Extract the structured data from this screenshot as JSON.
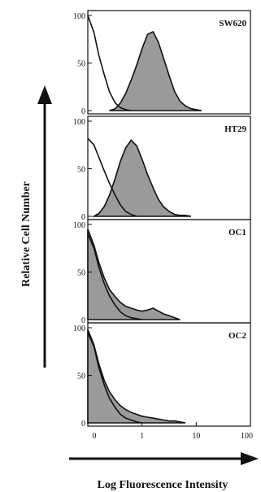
{
  "chart_data": {
    "type": "area",
    "xlabel": "Log Fluorescence Intensity",
    "ylabel": "Relative Cell Number",
    "x_scale": "log",
    "xlim": [
      0.1,
      100
    ],
    "ylim": [
      0,
      100
    ],
    "x_ticks": [
      {
        "value": 0.1,
        "label": "0"
      },
      {
        "value": 1,
        "label": "1"
      },
      {
        "value": 10,
        "label": "10"
      },
      {
        "value": 100,
        "label": "100"
      }
    ],
    "y_ticks": [
      {
        "value": 0,
        "label": "0"
      },
      {
        "value": 50,
        "label": "50"
      },
      {
        "value": 100,
        "label": "100"
      }
    ],
    "panels": [
      {
        "label": "SW620",
        "control": {
          "x": [
            0.1,
            0.13,
            0.16,
            0.2,
            0.25,
            0.32,
            0.4,
            0.5,
            0.63
          ],
          "y": [
            100,
            82,
            58,
            38,
            20,
            8,
            3,
            1,
            0
          ]
        },
        "stained": {
          "x": [
            0.25,
            0.32,
            0.4,
            0.5,
            0.63,
            0.8,
            1.0,
            1.26,
            1.6,
            2.0,
            2.5,
            3.2,
            4.0,
            5.0,
            6.3,
            8.0,
            10,
            12.6
          ],
          "y": [
            0,
            2,
            8,
            18,
            32,
            48,
            65,
            80,
            83,
            72,
            55,
            36,
            20,
            10,
            5,
            2,
            1,
            0
          ]
        }
      },
      {
        "label": "HT29",
        "control": {
          "x": [
            0.1,
            0.13,
            0.16,
            0.2,
            0.25,
            0.32,
            0.4,
            0.5,
            0.63,
            0.8
          ],
          "y": [
            82,
            75,
            62,
            48,
            35,
            22,
            12,
            5,
            2,
            0
          ]
        },
        "stained": {
          "x": [
            0.13,
            0.16,
            0.2,
            0.25,
            0.32,
            0.4,
            0.5,
            0.63,
            0.8,
            1.0,
            1.26,
            1.6,
            2.0,
            2.5,
            3.2,
            4.0,
            5.0,
            6.3,
            8.0
          ],
          "y": [
            0,
            3,
            10,
            22,
            40,
            58,
            72,
            80,
            74,
            60,
            44,
            30,
            18,
            10,
            5,
            2,
            1,
            1,
            0
          ]
        }
      },
      {
        "label": "OC1",
        "control": {
          "x": [
            0.1,
            0.13,
            0.16,
            0.2,
            0.25,
            0.32,
            0.4,
            0.5,
            0.63,
            0.8,
            1.0
          ],
          "y": [
            90,
            75,
            55,
            38,
            25,
            15,
            8,
            4,
            2,
            1,
            0
          ]
        },
        "stained": {
          "x": [
            0.1,
            0.13,
            0.16,
            0.2,
            0.25,
            0.32,
            0.4,
            0.5,
            0.63,
            0.8,
            1.0,
            1.26,
            1.6,
            2.0,
            2.5,
            3.2,
            4.0,
            5.0
          ],
          "y": [
            95,
            78,
            60,
            44,
            32,
            24,
            18,
            14,
            12,
            10,
            9,
            10,
            12,
            9,
            6,
            4,
            2,
            0
          ]
        }
      },
      {
        "label": "OC2",
        "control": {
          "x": [
            0.1,
            0.13,
            0.16,
            0.2,
            0.25,
            0.32,
            0.4,
            0.5,
            0.63,
            0.8,
            1.0
          ],
          "y": [
            95,
            80,
            58,
            40,
            26,
            16,
            9,
            5,
            3,
            1,
            0
          ]
        },
        "stained": {
          "x": [
            0.1,
            0.13,
            0.16,
            0.2,
            0.25,
            0.32,
            0.4,
            0.5,
            0.63,
            0.8,
            1.0,
            1.26,
            1.6,
            2.0,
            2.5,
            3.2,
            4.0,
            5.0,
            6.3
          ],
          "y": [
            98,
            82,
            62,
            45,
            33,
            24,
            18,
            14,
            11,
            9,
            7,
            6,
            5,
            4,
            3,
            2,
            2,
            1,
            0
          ]
        }
      }
    ],
    "colors": {
      "fill": "#9a9a9a",
      "line": "#111111",
      "axis": "#111111"
    }
  }
}
